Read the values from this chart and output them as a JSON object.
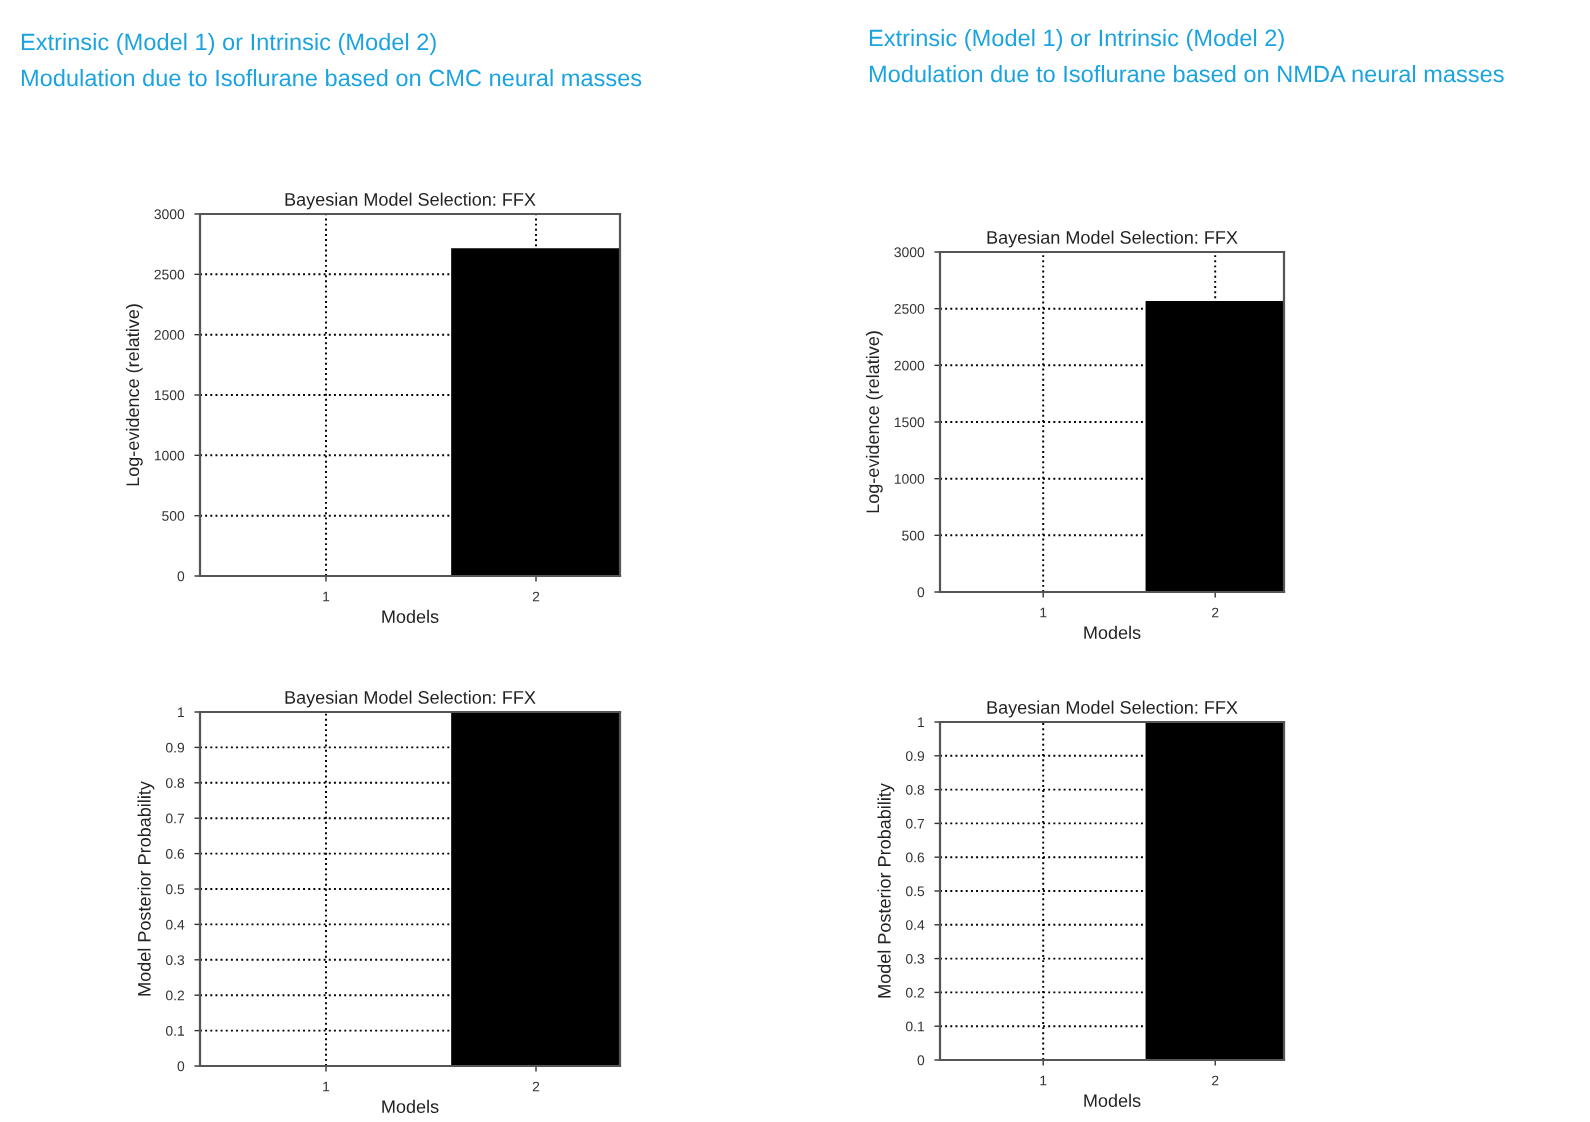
{
  "chart_data": [
    {
      "type": "bar",
      "title": "Bayesian Model Selection: FFX",
      "annotations": [
        "Extrinsic (Model 1) or Intrinsic (Model 2)",
        "Modulation due to Isoflurane based on CMC neural masses"
      ],
      "xlabel": "Models",
      "ylabel": "Log-evidence (relative)",
      "categories": [
        "1",
        "2"
      ],
      "values": [
        0,
        2710
      ],
      "color": "#000000",
      "ylim": [
        0,
        3000
      ],
      "yticks": [
        0,
        500,
        1000,
        1500,
        2000,
        2500,
        3000
      ],
      "grid": true,
      "line_style": "dotted"
    },
    {
      "type": "bar",
      "title": "Bayesian Model Selection: FFX",
      "annotations": [
        "Extrinsic (Model 1) or Intrinsic (Model 2)",
        "Modulation due to Isoflurane based on NMDA neural masses"
      ],
      "xlabel": "Models",
      "ylabel": "Log-evidence (relative)",
      "categories": [
        "1",
        "2"
      ],
      "values": [
        0,
        2560
      ],
      "color": "#000000",
      "ylim": [
        0,
        3000
      ],
      "yticks": [
        0,
        500,
        1000,
        1500,
        2000,
        2500,
        3000
      ],
      "grid": true,
      "line_style": "dotted"
    },
    {
      "type": "bar",
      "title": "Bayesian Model Selection: FFX",
      "xlabel": "Models",
      "ylabel": "Model Posterior Probability",
      "categories": [
        "1",
        "2"
      ],
      "values": [
        0,
        1
      ],
      "color": "#000000",
      "ylim": [
        0,
        1
      ],
      "yticks": [
        0,
        0.1,
        0.2,
        0.3,
        0.4,
        0.5,
        0.6,
        0.7,
        0.8,
        0.9,
        1
      ],
      "grid": true,
      "line_style": "dotted"
    },
    {
      "type": "bar",
      "title": "Bayesian Model Selection: FFX",
      "xlabel": "Models",
      "ylabel": "Model Posterior Probability",
      "categories": [
        "1",
        "2"
      ],
      "values": [
        0,
        1
      ],
      "color": "#000000",
      "ylim": [
        0,
        1
      ],
      "yticks": [
        0,
        0.1,
        0.2,
        0.3,
        0.4,
        0.5,
        0.6,
        0.7,
        0.8,
        0.9,
        1
      ],
      "grid": true,
      "line_style": "dotted"
    }
  ]
}
